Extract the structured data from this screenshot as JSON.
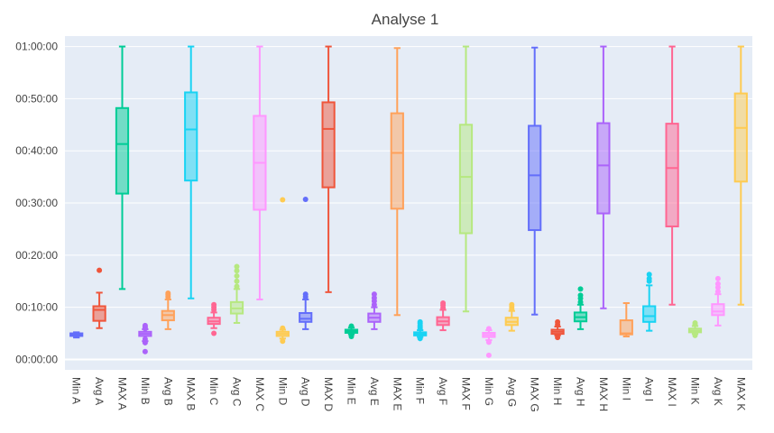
{
  "chart_data": {
    "type": "box",
    "title": "Analyse 1",
    "xlabel": "",
    "ylabel": "",
    "ylim_minutes": [
      -2,
      62
    ],
    "y_ticks": [
      {
        "minutes": 0,
        "label": "00:00:00"
      },
      {
        "minutes": 10,
        "label": "00:10:00"
      },
      {
        "minutes": 20,
        "label": "00:20:00"
      },
      {
        "minutes": 30,
        "label": "00:30:00"
      },
      {
        "minutes": 40,
        "label": "00:40:00"
      },
      {
        "minutes": 50,
        "label": "00:50:00"
      },
      {
        "minutes": 60,
        "label": "01:00:00"
      }
    ],
    "grid": true,
    "legend": "none",
    "value_unit": "minutes",
    "series": [
      {
        "label": "Min A",
        "color": "#636efa",
        "min": 4.2,
        "q1": 4.5,
        "median": 4.7,
        "q3": 5.0,
        "max": 5.2,
        "outliers": []
      },
      {
        "label": "Avg A",
        "color": "#ef553b",
        "min": 6.0,
        "q1": 7.4,
        "median": 9.5,
        "q3": 10.2,
        "max": 12.8,
        "outliers": [
          17.1
        ]
      },
      {
        "label": "MAX A",
        "color": "#00cc96",
        "min": 13.5,
        "q1": 31.8,
        "median": 41.3,
        "q3": 48.2,
        "max": 60.0,
        "outliers": []
      },
      {
        "label": "Min B",
        "color": "#ab63fa",
        "min": 3.5,
        "q1": 4.5,
        "median": 4.9,
        "q3": 5.3,
        "max": 5.8,
        "outliers": [
          1.5,
          3.2,
          3.9,
          5.9,
          6.2,
          6.5
        ]
      },
      {
        "label": "Avg B",
        "color": "#ffa15a",
        "min": 5.8,
        "q1": 7.5,
        "median": 8.5,
        "q3": 9.3,
        "max": 11.5,
        "outliers": [
          12.0,
          12.4,
          12.7
        ]
      },
      {
        "label": "MAX B",
        "color": "#19d3f3",
        "min": 11.7,
        "q1": 34.3,
        "median": 44.1,
        "q3": 51.2,
        "max": 60.0,
        "outliers": []
      },
      {
        "label": "Min C",
        "color": "#ff6692",
        "min": 6.0,
        "q1": 6.8,
        "median": 7.3,
        "q3": 8.0,
        "max": 9.0,
        "outliers": [
          5.0,
          9.5,
          10.0,
          10.5
        ]
      },
      {
        "label": "Avg C",
        "color": "#b6e880",
        "min": 7.0,
        "q1": 8.8,
        "median": 9.8,
        "q3": 11.0,
        "max": 13.5,
        "outliers": [
          14.0,
          15.0,
          16.0,
          17.0,
          17.8
        ]
      },
      {
        "label": "MAX C",
        "color": "#ff97ff",
        "min": 11.5,
        "q1": 28.7,
        "median": 37.7,
        "q3": 46.7,
        "max": 60.0,
        "outliers": []
      },
      {
        "label": "Min D",
        "color": "#fecb52",
        "min": 4.0,
        "q1": 4.5,
        "median": 4.9,
        "q3": 5.3,
        "max": 5.7,
        "outliers": [
          3.5,
          6.0,
          30.6
        ]
      },
      {
        "label": "Avg D",
        "color": "#636efa",
        "min": 5.8,
        "q1": 7.2,
        "median": 7.8,
        "q3": 8.9,
        "max": 11.5,
        "outliers": [
          12.0,
          12.5,
          30.7
        ]
      },
      {
        "label": "MAX D",
        "color": "#ef553b",
        "min": 12.9,
        "q1": 33.0,
        "median": 44.2,
        "q3": 49.3,
        "max": 60.0,
        "outliers": []
      },
      {
        "label": "Min E",
        "color": "#00cc96",
        "min": 4.8,
        "q1": 5.1,
        "median": 5.4,
        "q3": 5.7,
        "max": 6.1,
        "outliers": [
          4.4,
          6.4
        ]
      },
      {
        "label": "Avg E",
        "color": "#ab63fa",
        "min": 5.8,
        "q1": 7.2,
        "median": 8.0,
        "q3": 8.8,
        "max": 10.0,
        "outliers": [
          10.5,
          11.2,
          11.8,
          12.5
        ]
      },
      {
        "label": "MAX E",
        "color": "#ffa15a",
        "min": 8.5,
        "q1": 28.9,
        "median": 39.6,
        "q3": 47.2,
        "max": 59.7,
        "outliers": []
      },
      {
        "label": "Min F",
        "color": "#19d3f3",
        "min": 4.3,
        "q1": 4.6,
        "median": 4.9,
        "q3": 5.2,
        "max": 5.6,
        "outliers": [
          4.0,
          5.9,
          6.2,
          6.5,
          6.9,
          7.2
        ]
      },
      {
        "label": "Avg F",
        "color": "#ff6692",
        "min": 5.6,
        "q1": 6.6,
        "median": 7.3,
        "q3": 8.1,
        "max": 9.5,
        "outliers": [
          9.9,
          10.4,
          10.8
        ]
      },
      {
        "label": "MAX F",
        "color": "#b6e880",
        "min": 9.2,
        "q1": 24.2,
        "median": 35.0,
        "q3": 45.0,
        "max": 60.0,
        "outliers": []
      },
      {
        "label": "Min G",
        "color": "#ff97ff",
        "min": 3.7,
        "q1": 4.3,
        "median": 4.7,
        "q3": 5.1,
        "max": 5.6,
        "outliers": [
          0.8,
          3.3,
          5.9
        ]
      },
      {
        "label": "Avg G",
        "color": "#fecb52",
        "min": 5.5,
        "q1": 6.6,
        "median": 7.2,
        "q3": 8.0,
        "max": 9.3,
        "outliers": [
          9.7,
          10.1,
          10.5
        ]
      },
      {
        "label": "MAX G",
        "color": "#636efa",
        "min": 8.6,
        "q1": 24.8,
        "median": 35.3,
        "q3": 44.8,
        "max": 59.8,
        "outliers": []
      },
      {
        "label": "Min H",
        "color": "#ef553b",
        "min": 4.6,
        "q1": 4.9,
        "median": 5.3,
        "q3": 5.7,
        "max": 6.3,
        "outliers": [
          4.2,
          6.7,
          7.2
        ]
      },
      {
        "label": "Avg H",
        "color": "#00cc96",
        "min": 5.8,
        "q1": 7.3,
        "median": 8.1,
        "q3": 9.0,
        "max": 10.5,
        "outliers": [
          11.0,
          11.7,
          12.3,
          13.5
        ]
      },
      {
        "label": "MAX H",
        "color": "#ab63fa",
        "min": 9.8,
        "q1": 28.0,
        "median": 37.2,
        "q3": 45.3,
        "max": 60.0,
        "outliers": []
      },
      {
        "label": "Min I",
        "color": "#ffa15a",
        "min": 4.4,
        "q1": 4.8,
        "median": 5.0,
        "q3": 7.5,
        "max": 10.8,
        "outliers": []
      },
      {
        "label": "Avg I",
        "color": "#19d3f3",
        "min": 5.5,
        "q1": 7.2,
        "median": 8.3,
        "q3": 10.2,
        "max": 14.2,
        "outliers": [
          15.0,
          15.5,
          16.3
        ]
      },
      {
        "label": "MAX I",
        "color": "#ff6692",
        "min": 10.5,
        "q1": 25.5,
        "median": 36.7,
        "q3": 45.2,
        "max": 60.0,
        "outliers": []
      },
      {
        "label": "Min K",
        "color": "#b6e880",
        "min": 4.9,
        "q1": 5.2,
        "median": 5.5,
        "q3": 5.9,
        "max": 6.4,
        "outliers": [
          4.6,
          6.7,
          7.0
        ]
      },
      {
        "label": "Avg K",
        "color": "#ff97ff",
        "min": 6.5,
        "q1": 8.5,
        "median": 9.2,
        "q3": 10.6,
        "max": 12.5,
        "outliers": [
          13.0,
          13.8,
          14.5,
          15.5
        ]
      },
      {
        "label": "MAX K",
        "color": "#fecb52",
        "min": 10.5,
        "q1": 34.1,
        "median": 44.4,
        "q3": 51.0,
        "max": 60.0,
        "outliers": []
      }
    ]
  }
}
